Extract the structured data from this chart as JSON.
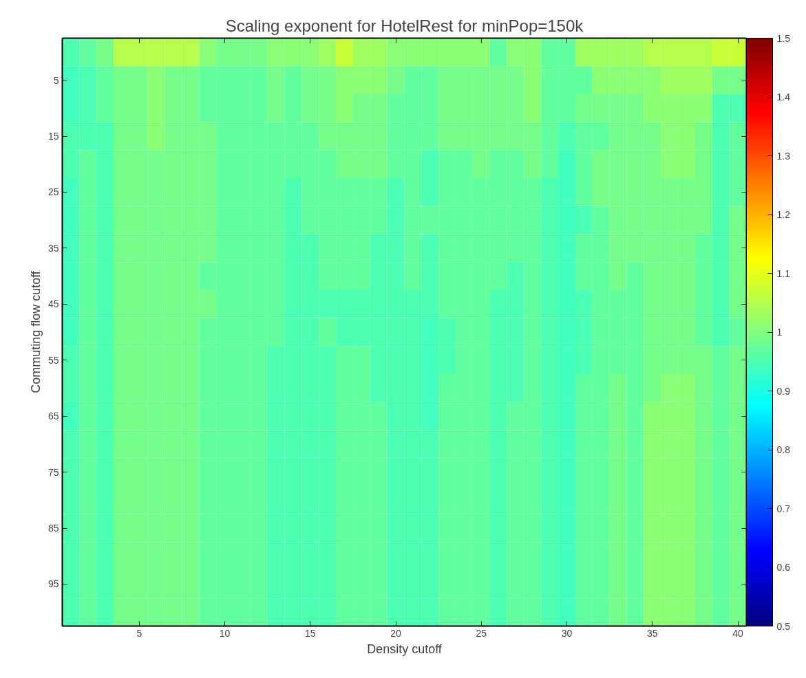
{
  "chart_data": {
    "type": "heatmap",
    "title": "Scaling exponent for HotelRest for minPop=150k",
    "xlabel": "Density cutoff",
    "ylabel": "Commuting flow cutoff",
    "categories": [
      null,
      null,
      null,
      null,
      "5",
      null,
      null,
      null,
      null,
      "10",
      null,
      null,
      null,
      null,
      "15",
      null,
      null,
      null,
      null,
      "20",
      null,
      null,
      null,
      null,
      "25",
      null,
      null,
      null,
      null,
      "30",
      null,
      null,
      null,
      null,
      "35",
      null,
      null,
      null,
      null,
      "40"
    ],
    "y_categories": [
      null,
      "5",
      null,
      "15",
      null,
      "25",
      null,
      "35",
      null,
      "45",
      null,
      "55",
      null,
      "65",
      null,
      "75",
      null,
      "85",
      null,
      "95",
      null
    ],
    "cells": [
      [
        0.95,
        0.97,
        0.99,
        1.05,
        1.05,
        1.05,
        1.05,
        1.05,
        1.01,
        0.99,
        0.99,
        0.99,
        1.01,
        1.01,
        1.01,
        1.03,
        1.07,
        1.03,
        1.03,
        1.01,
        1.01,
        1.01,
        1.01,
        1.01,
        1.01,
        0.97,
        1.01,
        1.01,
        0.97,
        0.97,
        1.03,
        1.03,
        1.03,
        1.03,
        1.05,
        1.05,
        1.05,
        1.05,
        1.07,
        1.07
      ],
      [
        0.94,
        0.95,
        0.97,
        0.99,
        0.99,
        1.01,
        0.99,
        0.99,
        0.97,
        0.97,
        0.97,
        0.97,
        0.99,
        0.97,
        0.99,
        0.99,
        1.01,
        1.01,
        1.01,
        0.99,
        0.97,
        0.97,
        0.99,
        0.99,
        0.99,
        0.99,
        0.99,
        1.01,
        0.97,
        0.97,
        0.97,
        1.01,
        1.01,
        1.01,
        1.01,
        1.03,
        1.03,
        1.03,
        0.99,
        0.99
      ],
      [
        0.94,
        0.95,
        0.97,
        0.99,
        0.99,
        1.01,
        0.99,
        0.99,
        0.97,
        0.97,
        0.97,
        0.97,
        0.99,
        0.97,
        0.99,
        0.99,
        1.01,
        0.99,
        0.99,
        0.97,
        0.97,
        0.97,
        0.99,
        0.99,
        0.99,
        0.99,
        0.99,
        1.01,
        0.97,
        0.97,
        0.99,
        0.99,
        0.99,
        0.99,
        1.01,
        1.01,
        1.01,
        1.01,
        0.95,
        0.95
      ],
      [
        0.95,
        0.95,
        0.95,
        0.99,
        0.99,
        1.01,
        0.99,
        0.99,
        0.99,
        0.97,
        0.97,
        0.97,
        0.97,
        0.97,
        0.97,
        0.99,
        0.99,
        0.99,
        0.99,
        0.97,
        0.97,
        0.97,
        0.99,
        0.99,
        0.99,
        0.99,
        0.99,
        0.99,
        0.97,
        0.95,
        0.97,
        0.97,
        0.99,
        0.99,
        0.99,
        1.01,
        1.01,
        0.99,
        0.95,
        0.97
      ],
      [
        0.95,
        0.97,
        0.95,
        0.99,
        0.99,
        0.99,
        0.99,
        0.99,
        0.99,
        0.97,
        0.97,
        0.97,
        0.97,
        0.97,
        0.97,
        0.97,
        0.99,
        0.99,
        0.99,
        0.97,
        0.97,
        0.95,
        0.97,
        0.97,
        0.99,
        0.97,
        0.97,
        0.99,
        0.97,
        0.94,
        0.97,
        0.99,
        0.99,
        0.99,
        0.99,
        1.01,
        1.01,
        0.99,
        0.95,
        0.97
      ],
      [
        0.94,
        0.97,
        0.95,
        0.99,
        0.99,
        0.99,
        0.99,
        0.99,
        0.99,
        0.97,
        0.97,
        0.97,
        0.97,
        0.95,
        0.97,
        0.97,
        0.97,
        0.97,
        0.97,
        0.95,
        0.97,
        0.95,
        0.97,
        0.97,
        0.97,
        0.97,
        0.97,
        0.97,
        0.95,
        0.94,
        0.97,
        0.99,
        0.99,
        0.99,
        0.99,
        0.99,
        0.99,
        0.99,
        0.95,
        0.97
      ],
      [
        0.94,
        0.97,
        0.95,
        0.99,
        0.99,
        0.99,
        0.99,
        0.99,
        0.99,
        0.97,
        0.97,
        0.97,
        0.97,
        0.95,
        0.97,
        0.97,
        0.97,
        0.97,
        0.97,
        0.95,
        0.97,
        0.97,
        0.97,
        0.97,
        0.97,
        0.97,
        0.97,
        0.97,
        0.95,
        0.94,
        0.95,
        0.97,
        0.99,
        0.99,
        0.99,
        0.99,
        0.99,
        0.99,
        0.95,
        0.99
      ],
      [
        0.94,
        0.97,
        0.95,
        0.99,
        0.99,
        0.99,
        0.99,
        0.99,
        0.99,
        0.97,
        0.97,
        0.97,
        0.97,
        0.95,
        0.95,
        0.97,
        0.97,
        0.97,
        0.95,
        0.95,
        0.97,
        0.95,
        0.97,
        0.97,
        0.97,
        0.97,
        0.97,
        0.97,
        0.95,
        0.94,
        0.97,
        0.97,
        0.99,
        0.99,
        0.99,
        0.99,
        0.99,
        0.97,
        0.95,
        0.99
      ],
      [
        0.94,
        0.97,
        0.95,
        0.99,
        0.99,
        0.99,
        0.99,
        0.99,
        0.97,
        0.97,
        0.97,
        0.97,
        0.97,
        0.95,
        0.95,
        0.97,
        0.97,
        0.97,
        0.95,
        0.95,
        0.97,
        0.95,
        0.97,
        0.97,
        0.97,
        0.97,
        0.95,
        0.97,
        0.95,
        0.94,
        0.97,
        0.97,
        0.99,
        0.97,
        0.99,
        0.99,
        0.99,
        0.97,
        0.95,
        0.99
      ],
      [
        0.94,
        0.97,
        0.95,
        0.99,
        0.99,
        0.99,
        0.99,
        0.99,
        0.99,
        0.97,
        0.97,
        0.97,
        0.97,
        0.95,
        0.95,
        0.95,
        0.95,
        0.95,
        0.95,
        0.95,
        0.95,
        0.95,
        0.97,
        0.97,
        0.97,
        0.95,
        0.95,
        0.97,
        0.95,
        0.94,
        0.95,
        0.97,
        0.97,
        0.97,
        0.99,
        0.99,
        0.99,
        0.97,
        0.95,
        0.99
      ],
      [
        0.94,
        0.97,
        0.95,
        0.99,
        0.99,
        0.99,
        0.99,
        0.99,
        0.97,
        0.97,
        0.97,
        0.97,
        0.97,
        0.95,
        0.95,
        0.97,
        0.95,
        0.95,
        0.95,
        0.95,
        0.95,
        0.94,
        0.95,
        0.97,
        0.97,
        0.95,
        0.95,
        0.97,
        0.95,
        0.94,
        0.95,
        0.97,
        0.97,
        0.97,
        0.99,
        0.99,
        0.99,
        0.97,
        0.95,
        0.97
      ],
      [
        0.95,
        0.97,
        0.95,
        0.99,
        0.99,
        0.99,
        0.99,
        0.99,
        0.97,
        0.97,
        0.97,
        0.97,
        0.95,
        0.95,
        0.95,
        0.95,
        0.97,
        0.97,
        0.95,
        0.95,
        0.95,
        0.94,
        0.95,
        0.97,
        0.97,
        0.95,
        0.95,
        0.97,
        0.95,
        0.94,
        0.95,
        0.97,
        0.97,
        0.97,
        0.99,
        0.99,
        0.99,
        0.99,
        0.97,
        0.99
      ],
      [
        0.95,
        0.97,
        0.95,
        0.99,
        0.99,
        0.99,
        0.99,
        0.99,
        0.97,
        0.97,
        0.97,
        0.97,
        0.95,
        0.95,
        0.95,
        0.95,
        0.97,
        0.97,
        0.95,
        0.95,
        0.95,
        0.94,
        0.97,
        0.97,
        0.97,
        0.95,
        0.95,
        0.97,
        0.95,
        0.94,
        0.97,
        0.97,
        0.99,
        0.97,
        0.99,
        1.01,
        1.01,
        0.99,
        0.97,
        0.99
      ],
      [
        0.94,
        0.97,
        0.95,
        0.99,
        0.99,
        0.99,
        0.99,
        0.99,
        0.97,
        0.97,
        0.97,
        0.97,
        0.95,
        0.95,
        0.95,
        0.95,
        0.97,
        0.97,
        0.97,
        0.95,
        0.95,
        0.94,
        0.97,
        0.97,
        0.97,
        0.95,
        0.97,
        0.97,
        0.95,
        0.94,
        0.97,
        0.97,
        0.99,
        0.97,
        1.01,
        1.01,
        1.01,
        0.99,
        0.97,
        0.99
      ],
      [
        0.95,
        0.97,
        0.95,
        0.99,
        0.99,
        0.99,
        0.99,
        0.99,
        0.97,
        0.97,
        0.97,
        0.97,
        0.95,
        0.95,
        0.95,
        0.95,
        0.97,
        0.97,
        0.97,
        0.95,
        0.95,
        0.95,
        0.97,
        0.97,
        0.97,
        0.95,
        0.97,
        0.97,
        0.95,
        0.94,
        0.97,
        0.97,
        0.99,
        0.97,
        1.01,
        1.01,
        1.01,
        0.99,
        0.97,
        0.99
      ],
      [
        0.95,
        0.97,
        0.95,
        0.99,
        0.99,
        0.99,
        0.99,
        0.99,
        0.97,
        0.97,
        0.97,
        0.97,
        0.95,
        0.95,
        0.95,
        0.95,
        0.97,
        0.97,
        0.97,
        0.95,
        0.95,
        0.95,
        0.97,
        0.97,
        0.97,
        0.95,
        0.97,
        0.97,
        0.95,
        0.94,
        0.97,
        0.97,
        0.99,
        0.97,
        1.01,
        1.01,
        1.01,
        0.99,
        0.97,
        0.99
      ],
      [
        0.95,
        0.97,
        0.95,
        0.99,
        0.99,
        0.99,
        0.99,
        0.99,
        0.97,
        0.97,
        0.97,
        0.97,
        0.95,
        0.95,
        0.95,
        0.95,
        0.97,
        0.97,
        0.97,
        0.95,
        0.95,
        0.95,
        0.97,
        0.97,
        0.97,
        0.95,
        0.97,
        0.97,
        0.95,
        0.94,
        0.97,
        0.97,
        0.99,
        0.97,
        1.01,
        1.01,
        1.01,
        0.99,
        0.97,
        0.99
      ],
      [
        0.95,
        0.97,
        0.95,
        0.99,
        0.99,
        0.99,
        0.99,
        0.99,
        0.97,
        0.97,
        0.97,
        0.97,
        0.95,
        0.95,
        0.95,
        0.95,
        0.97,
        0.97,
        0.97,
        0.95,
        0.95,
        0.95,
        0.97,
        0.97,
        0.97,
        0.95,
        0.97,
        0.97,
        0.95,
        0.94,
        0.97,
        0.97,
        0.99,
        0.97,
        1.01,
        1.01,
        1.01,
        0.99,
        0.97,
        0.99
      ],
      [
        0.95,
        0.97,
        0.95,
        0.99,
        0.99,
        0.99,
        0.99,
        0.99,
        0.97,
        0.97,
        0.97,
        0.97,
        0.95,
        0.95,
        0.95,
        0.95,
        0.97,
        0.97,
        0.97,
        0.95,
        0.95,
        0.95,
        0.97,
        0.97,
        0.97,
        0.95,
        0.97,
        0.97,
        0.95,
        0.94,
        0.97,
        0.97,
        0.99,
        0.97,
        1.01,
        1.01,
        1.01,
        0.99,
        0.97,
        0.99
      ],
      [
        0.95,
        0.97,
        0.95,
        0.99,
        0.99,
        0.99,
        0.99,
        0.99,
        0.97,
        0.97,
        0.97,
        0.97,
        0.95,
        0.95,
        0.95,
        0.95,
        0.97,
        0.97,
        0.97,
        0.95,
        0.95,
        0.95,
        0.97,
        0.97,
        0.97,
        0.95,
        0.97,
        0.97,
        0.95,
        0.94,
        0.97,
        0.97,
        0.99,
        0.97,
        1.01,
        1.01,
        1.01,
        0.99,
        0.97,
        0.99
      ],
      [
        0.95,
        0.97,
        0.95,
        0.99,
        0.99,
        0.99,
        0.99,
        0.99,
        0.97,
        0.97,
        0.97,
        0.97,
        0.95,
        0.95,
        0.95,
        0.95,
        0.97,
        0.97,
        0.97,
        0.95,
        0.95,
        0.95,
        0.97,
        0.97,
        0.97,
        0.95,
        0.97,
        0.97,
        0.95,
        0.94,
        0.97,
        0.97,
        0.99,
        0.97,
        1.01,
        1.01,
        1.01,
        0.99,
        0.97,
        0.99
      ]
    ],
    "clim": [
      0.5,
      1.5
    ],
    "cticks": [
      0.5,
      0.6,
      0.7,
      0.8,
      0.9,
      1,
      1.1,
      1.2,
      1.3,
      1.4,
      1.5
    ]
  }
}
